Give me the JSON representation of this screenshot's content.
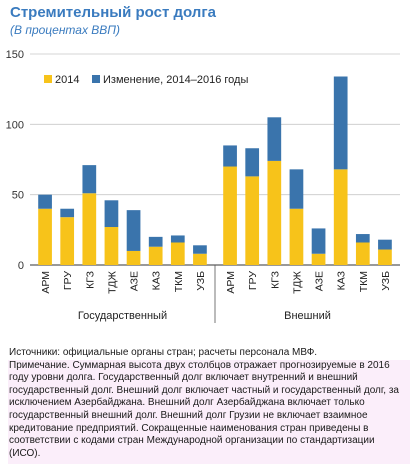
{
  "header": {
    "title": "Стремительный рост долга",
    "subtitle": "(В процентах ВВП)"
  },
  "colors": {
    "series_2014": "#f7c31a",
    "series_change": "#3a74ac",
    "title": "#3a7bbf"
  },
  "chart_data": {
    "type": "bar",
    "stacked": true,
    "title": "Стремительный рост долга",
    "subtitle": "(В процентах ВВП)",
    "ylim": [
      0,
      150
    ],
    "yticks": [
      0,
      50,
      100,
      150
    ],
    "grid": true,
    "legend_placement": "top-left",
    "groups": [
      {
        "label": "Государственный",
        "categories": [
          "АРМ",
          "ГРУ",
          "КГЗ",
          "ТДЖ",
          "АЗЕ",
          "КАЗ",
          "ТКМ",
          "УЗБ"
        ],
        "series": [
          {
            "name": "2014",
            "values": [
              40,
              34,
              51,
              27,
              10,
              13,
              16,
              8
            ]
          },
          {
            "name": "Изменение, 2014–2016 годы",
            "values": [
              10,
              6,
              20,
              19,
              29,
              7,
              5,
              6
            ]
          }
        ]
      },
      {
        "label": "Внешний",
        "categories": [
          "АРМ",
          "ГРУ",
          "КГЗ",
          "ТДЖ",
          "АЗЕ",
          "КАЗ",
          "ТКМ",
          "УЗБ"
        ],
        "series": [
          {
            "name": "2014",
            "values": [
              70,
              63,
              74,
              40,
              8,
              68,
              16,
              11
            ]
          },
          {
            "name": "Изменение, 2014–2016 годы",
            "values": [
              15,
              20,
              31,
              28,
              18,
              66,
              6,
              7
            ]
          }
        ]
      }
    ]
  },
  "notes": {
    "sources": "Источники: официальные органы стран; расчеты персонала МВФ.",
    "note": "Примечание. Суммарная высота двух столбцов отражает прогнозируемые в 2016 году уровни долга. Государственный долг включает внутренний и внешний государственный долг. Внешний долг включает частный и государственный долг, за исключением Азербайджана. Внешний долг Азербайджана включает только государственный внешний долг. Внешний долг Грузии не включает взаимное кредитование предприятий. Сокращенные наименования стран приведены в соответствии с кодами стран Международной организации по стандартизации (ИСО)."
  }
}
